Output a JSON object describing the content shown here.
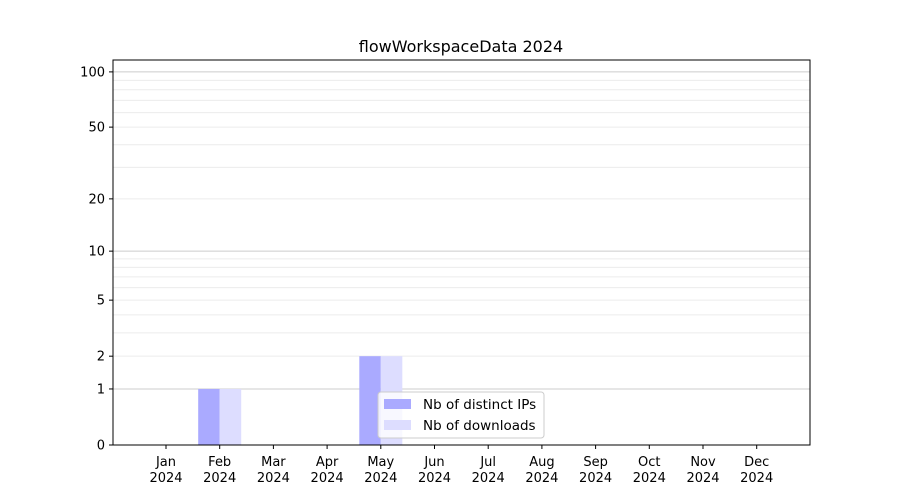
{
  "chart_data": {
    "type": "bar",
    "title": "flowWorkspaceData 2024",
    "xlabel": "",
    "ylabel": "",
    "yscale": "log(1+y)",
    "ylim": [
      0,
      116
    ],
    "grid": "horizontal major and minor",
    "legend_position": "lower-center",
    "categories": [
      "Jan\n2024",
      "Feb\n2024",
      "Mar\n2024",
      "Apr\n2024",
      "May\n2024",
      "Jun\n2024",
      "Jul\n2024",
      "Aug\n2024",
      "Sep\n2024",
      "Oct\n2024",
      "Nov\n2024",
      "Dec\n2024"
    ],
    "yticks": [
      0,
      1,
      2,
      5,
      10,
      20,
      50,
      100
    ],
    "ytick_labels": [
      "0",
      "1",
      "2",
      "5",
      "10",
      "20",
      "50",
      "100"
    ],
    "series": [
      {
        "name": "Nb of distinct IPs",
        "color": "#aaaaff",
        "values": [
          0,
          1,
          0,
          0,
          2,
          0,
          0,
          0,
          0,
          0,
          0,
          0
        ]
      },
      {
        "name": "Nb of downloads",
        "color": "#ddddff",
        "values": [
          0,
          1,
          0,
          0,
          2,
          0,
          0,
          0,
          0,
          0,
          0,
          0
        ]
      }
    ]
  }
}
